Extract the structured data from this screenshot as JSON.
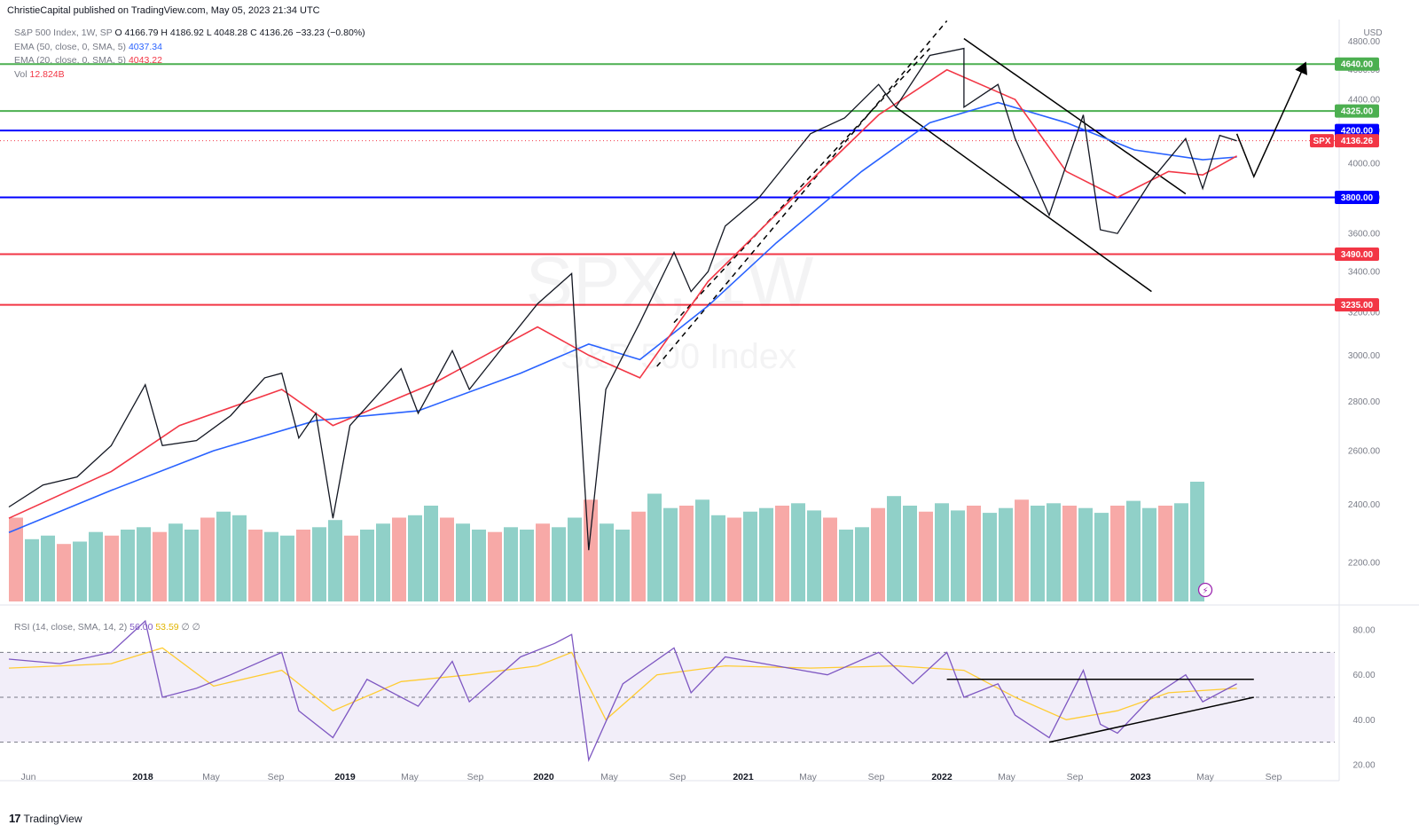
{
  "publisher": "ChristieCapital published on TradingView.com, May 05, 2023 21:34 UTC",
  "legend": {
    "symbol": "S&P 500 Index, 1W, SP",
    "ohlc": {
      "o": "O 4166.79",
      "h": "H 4186.92",
      "l": "L 4048.28",
      "c": "C 4136.26",
      "chg": "−33.23 (−0.80%)"
    },
    "ema50_label": "EMA (50, close, 0, SMA, 5)",
    "ema50_value": "4037.34",
    "ema20_label": "EMA (20, close, 0, SMA, 5)",
    "ema20_value": "4043.22",
    "vol_label": "Vol",
    "vol_value": "12.824B"
  },
  "watermark": {
    "line1": "SPX, 1W",
    "line2": "S&P 500 Index"
  },
  "rsi_legend": {
    "label": "RSI (14, close, SMA, 14, 2)",
    "value": "56.00",
    "sma": "53.59",
    "extra1": "∅",
    "extra2": "∅"
  },
  "footer": {
    "brand": "TradingView"
  },
  "chart_data": [
    {
      "type": "line",
      "title": "S&P 500 Index, 1W, SP",
      "currency_label": "USD",
      "x_labels": [
        "Jun",
        "2018",
        "May",
        "Sep",
        "2019",
        "May",
        "Sep",
        "2020",
        "May",
        "Sep",
        "2021",
        "May",
        "Sep",
        "2022",
        "May",
        "Sep",
        "2023",
        "May",
        "Sep"
      ],
      "y_ticks": [
        2200,
        2400,
        2600,
        2800,
        3000,
        3200,
        3400,
        3600,
        3800,
        4000,
        4200,
        4400,
        4600,
        4800
      ],
      "ylim": [
        2080,
        4960
      ],
      "log_scale": true,
      "grid": false,
      "price_series": {
        "name": "SPX",
        "points": [
          [
            "2017-05",
            2390
          ],
          [
            "2017-07",
            2470
          ],
          [
            "2017-09",
            2500
          ],
          [
            "2017-11",
            2620
          ],
          [
            "2018-01",
            2870
          ],
          [
            "2018-02",
            2620
          ],
          [
            "2018-04",
            2640
          ],
          [
            "2018-06",
            2740
          ],
          [
            "2018-08",
            2900
          ],
          [
            "2018-09",
            2920
          ],
          [
            "2018-10",
            2650
          ],
          [
            "2018-11",
            2750
          ],
          [
            "2018-12",
            2350
          ],
          [
            "2019-01",
            2700
          ],
          [
            "2019-04",
            2940
          ],
          [
            "2019-05",
            2750
          ],
          [
            "2019-07",
            3020
          ],
          [
            "2019-08",
            2850
          ],
          [
            "2019-10",
            3040
          ],
          [
            "2019-12",
            3240
          ],
          [
            "2020-02",
            3390
          ],
          [
            "2020-03",
            2240
          ],
          [
            "2020-04",
            2850
          ],
          [
            "2020-06",
            3150
          ],
          [
            "2020-08",
            3500
          ],
          [
            "2020-09",
            3300
          ],
          [
            "2020-10",
            3400
          ],
          [
            "2020-11",
            3640
          ],
          [
            "2021-01",
            3800
          ],
          [
            "2021-04",
            4180
          ],
          [
            "2021-06",
            4280
          ],
          [
            "2021-08",
            4500
          ],
          [
            "2021-09",
            4350
          ],
          [
            "2021-11",
            4700
          ],
          [
            "2022-01",
            4750
          ],
          [
            "2022-01",
            4350
          ],
          [
            "2022-03",
            4500
          ],
          [
            "2022-04",
            4150
          ],
          [
            "2022-06",
            3700
          ],
          [
            "2022-08",
            4300
          ],
          [
            "2022-09",
            3620
          ],
          [
            "2022-10",
            3600
          ],
          [
            "2022-12",
            3900
          ],
          [
            "2023-02",
            4150
          ],
          [
            "2023-03",
            3850
          ],
          [
            "2023-04",
            4170
          ],
          [
            "2023-05",
            4136
          ]
        ]
      },
      "ema50_series": {
        "name": "EMA (50, close, 0, SMA, 5)",
        "points": [
          [
            "2017-05",
            2300
          ],
          [
            "2017-11",
            2450
          ],
          [
            "2018-05",
            2600
          ],
          [
            "2018-11",
            2720
          ],
          [
            "2019-05",
            2760
          ],
          [
            "2019-11",
            2920
          ],
          [
            "2020-03",
            3050
          ],
          [
            "2020-06",
            2980
          ],
          [
            "2020-10",
            3230
          ],
          [
            "2021-02",
            3550
          ],
          [
            "2021-07",
            3950
          ],
          [
            "2021-11",
            4250
          ],
          [
            "2022-03",
            4380
          ],
          [
            "2022-07",
            4250
          ],
          [
            "2022-11",
            4080
          ],
          [
            "2023-03",
            4020
          ],
          [
            "2023-05",
            4037
          ]
        ]
      },
      "ema20_series": {
        "name": "EMA (20, close, 0, SMA, 5)",
        "points": [
          [
            "2017-05",
            2350
          ],
          [
            "2017-11",
            2520
          ],
          [
            "2018-03",
            2700
          ],
          [
            "2018-09",
            2850
          ],
          [
            "2018-12",
            2700
          ],
          [
            "2019-06",
            2880
          ],
          [
            "2019-12",
            3130
          ],
          [
            "2020-03",
            3000
          ],
          [
            "2020-06",
            2900
          ],
          [
            "2020-10",
            3350
          ],
          [
            "2021-03",
            3800
          ],
          [
            "2021-08",
            4300
          ],
          [
            "2021-12",
            4600
          ],
          [
            "2022-04",
            4400
          ],
          [
            "2022-07",
            3950
          ],
          [
            "2022-10",
            3800
          ],
          [
            "2023-01",
            3950
          ],
          [
            "2023-03",
            3930
          ],
          [
            "2023-05",
            4043
          ]
        ]
      },
      "horizontal_levels": [
        {
          "value": 4640,
          "label": "4640.00",
          "color": "#4caf50"
        },
        {
          "value": 4325,
          "label": "4325.00",
          "color": "#4caf50"
        },
        {
          "value": 4200,
          "label": "4200.00",
          "color": "#0000ff"
        },
        {
          "value": 3800,
          "label": "3800.00",
          "color": "#0000ff"
        },
        {
          "value": 3490,
          "label": "3490.00",
          "color": "#f23645"
        },
        {
          "value": 3235,
          "label": "3235.00",
          "color": "#f23645"
        }
      ],
      "last_price_tag": {
        "symbol": "SPX",
        "value": 4136.26,
        "label": "4136.26"
      },
      "projection_path": [
        [
          "2023-05",
          4180
        ],
        [
          "2023-06",
          3920
        ],
        [
          "2023-09",
          4640
        ]
      ],
      "trendlines": [
        {
          "style": "dashed",
          "from": [
            "2020-07",
            2950
          ],
          "to": [
            "2021-12",
            4950
          ]
        },
        {
          "style": "dashed",
          "from": [
            "2020-08",
            3150
          ],
          "to": [
            "2021-11",
            4750
          ]
        },
        {
          "style": "solid",
          "from": [
            "2022-01",
            4820
          ],
          "to": [
            "2023-02",
            3820
          ]
        },
        {
          "style": "solid",
          "from": [
            "2021-09",
            4350
          ],
          "to": [
            "2022-12",
            3300
          ]
        }
      ],
      "volume_bars": {
        "name": "Vol",
        "values": [
          0.7,
          0.52,
          0.55,
          0.48,
          0.5,
          0.58,
          0.55,
          0.6,
          0.62,
          0.58,
          0.65,
          0.6,
          0.7,
          0.75,
          0.72,
          0.6,
          0.58,
          0.55,
          0.6,
          0.62,
          0.68,
          0.55,
          0.6,
          0.65,
          0.7,
          0.72,
          0.8,
          0.7,
          0.65,
          0.6,
          0.58,
          0.62,
          0.6,
          0.65,
          0.62,
          0.7,
          0.85,
          0.65,
          0.6,
          0.75,
          0.9,
          0.78,
          0.8,
          0.85,
          0.72,
          0.7,
          0.75,
          0.78,
          0.8,
          0.82,
          0.76,
          0.7,
          0.6,
          0.62,
          0.78,
          0.88,
          0.8,
          0.75,
          0.82,
          0.76,
          0.8,
          0.74,
          0.78,
          0.85,
          0.8,
          0.82,
          0.8,
          0.78,
          0.74,
          0.8,
          0.84,
          0.78,
          0.8,
          0.82,
          1.0
        ],
        "last": "12.824B"
      }
    },
    {
      "type": "line",
      "title": "RSI (14, close, SMA, 14, 2)",
      "y_ticks": [
        20,
        40,
        60,
        80
      ],
      "ylim": [
        16,
        84
      ],
      "band": [
        30,
        70
      ],
      "midline": 50,
      "rsi_series": {
        "name": "RSI",
        "points": [
          [
            "2017-05",
            67
          ],
          [
            "2017-08",
            65
          ],
          [
            "2017-11",
            70
          ],
          [
            "2018-01",
            84
          ],
          [
            "2018-02",
            50
          ],
          [
            "2018-04",
            54
          ],
          [
            "2018-06",
            60
          ],
          [
            "2018-09",
            70
          ],
          [
            "2018-10",
            44
          ],
          [
            "2018-12",
            32
          ],
          [
            "2019-02",
            58
          ],
          [
            "2019-05",
            46
          ],
          [
            "2019-07",
            66
          ],
          [
            "2019-08",
            48
          ],
          [
            "2019-11",
            68
          ],
          [
            "2020-01",
            74
          ],
          [
            "2020-02",
            78
          ],
          [
            "2020-03",
            22
          ],
          [
            "2020-05",
            56
          ],
          [
            "2020-08",
            72
          ],
          [
            "2020-09",
            52
          ],
          [
            "2020-11",
            68
          ],
          [
            "2021-02",
            64
          ],
          [
            "2021-05",
            60
          ],
          [
            "2021-08",
            70
          ],
          [
            "2021-10",
            56
          ],
          [
            "2021-12",
            70
          ],
          [
            "2022-01",
            50
          ],
          [
            "2022-03",
            56
          ],
          [
            "2022-04",
            42
          ],
          [
            "2022-06",
            32
          ],
          [
            "2022-08",
            62
          ],
          [
            "2022-09",
            38
          ],
          [
            "2022-10",
            34
          ],
          [
            "2022-12",
            50
          ],
          [
            "2023-02",
            60
          ],
          [
            "2023-03",
            48
          ],
          [
            "2023-05",
            56
          ]
        ]
      },
      "rsi_sma_series": {
        "name": "RSI SMA",
        "points": [
          [
            "2017-05",
            63
          ],
          [
            "2017-11",
            65
          ],
          [
            "2018-02",
            72
          ],
          [
            "2018-05",
            55
          ],
          [
            "2018-09",
            62
          ],
          [
            "2018-12",
            44
          ],
          [
            "2019-04",
            57
          ],
          [
            "2019-08",
            60
          ],
          [
            "2019-12",
            64
          ],
          [
            "2020-02",
            70
          ],
          [
            "2020-04",
            40
          ],
          [
            "2020-07",
            60
          ],
          [
            "2020-11",
            64
          ],
          [
            "2021-04",
            63
          ],
          [
            "2021-09",
            64
          ],
          [
            "2022-01",
            62
          ],
          [
            "2022-04",
            50
          ],
          [
            "2022-07",
            40
          ],
          [
            "2022-10",
            44
          ],
          [
            "2023-01",
            52
          ],
          [
            "2023-05",
            54
          ]
        ]
      },
      "rsi_lines": [
        {
          "from": [
            "2021-12",
            58
          ],
          "to": [
            "2023-06",
            58
          ]
        },
        {
          "from": [
            "2022-06",
            30
          ],
          "to": [
            "2023-06",
            50
          ]
        }
      ]
    }
  ]
}
